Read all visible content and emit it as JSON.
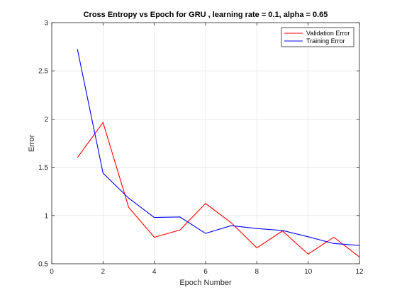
{
  "chart_data": {
    "type": "line",
    "title": "Cross Entropy vs Epoch for GRU , learning rate = 0.1, alpha = 0.65",
    "xlabel": "Epoch Number",
    "ylabel": "Error",
    "xlim": [
      0,
      12
    ],
    "ylim": [
      0.5,
      3
    ],
    "xticks": [
      "0",
      "2",
      "4",
      "6",
      "8",
      "10",
      "12"
    ],
    "yticks": [
      "0.5",
      "1",
      "1.5",
      "2",
      "2.5",
      "3"
    ],
    "grid": true,
    "legend_position": "top-right",
    "x": [
      1,
      2,
      3,
      4,
      5,
      6,
      7,
      8,
      9,
      10,
      11,
      12
    ],
    "series": [
      {
        "name": "Validation Error",
        "color": "#ff0000",
        "values": [
          1.6,
          1.965,
          1.085,
          0.775,
          0.85,
          1.125,
          0.925,
          0.665,
          0.84,
          0.6,
          0.775,
          0.57
        ]
      },
      {
        "name": "Training Error",
        "color": "#0000ff",
        "values": [
          2.725,
          1.44,
          1.18,
          0.98,
          0.985,
          0.815,
          0.895,
          0.865,
          0.845,
          0.78,
          0.71,
          0.69
        ]
      }
    ]
  }
}
